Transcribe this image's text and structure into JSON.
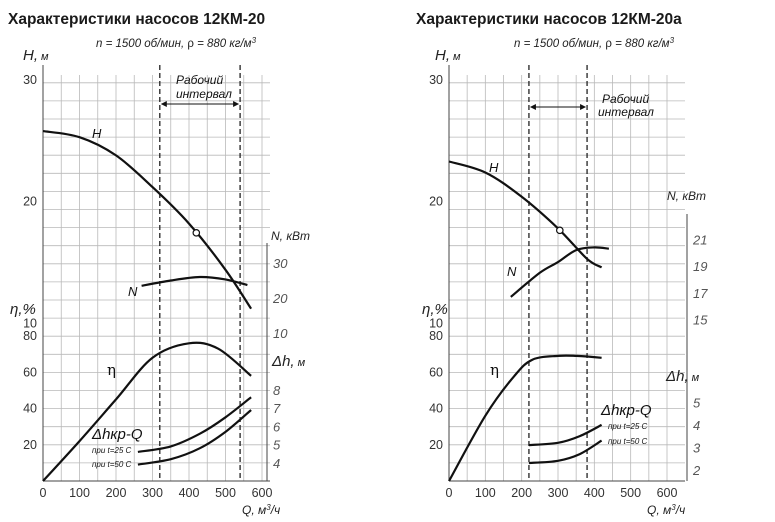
{
  "chart_data": [
    {
      "type": "line",
      "title": "Характеристики насосов 12КМ-20",
      "subtitle_rpm": "n = 1500 об/мин, ",
      "subtitle_rho_sym": "ρ",
      "subtitle_rho": " = 880 кг/м",
      "subtitle_sup": "3",
      "x_axis": {
        "label": "Q, м",
        "label_sup": "3",
        "label_tail": "/ч",
        "range": [
          0,
          600
        ],
        "ticks": [
          "0",
          "100",
          "200",
          "300",
          "400",
          "500",
          "600"
        ]
      },
      "y_axes": {
        "H": {
          "label": "H,",
          "unit": "м",
          "ticks": [
            "10",
            "20",
            "30"
          ],
          "range": [
            0,
            30
          ]
        },
        "eta": {
          "label": "η,%",
          "ticks": [
            "20",
            "40",
            "60",
            "80"
          ],
          "range": [
            0,
            80
          ]
        },
        "N": {
          "label": "N, кВт",
          "ticks": [
            "20",
            "30",
            "10"
          ],
          "range": [
            10,
            30
          ]
        },
        "dh": {
          "label": "Δh,",
          "unit": "м",
          "ticks": [
            "4",
            "5",
            "6",
            "7",
            "8"
          ],
          "range": [
            3,
            8
          ]
        }
      },
      "working_interval": {
        "label1": "Рабочий",
        "label2": "интервал",
        "q_range": [
          320,
          540
        ]
      },
      "series": [
        {
          "name": "H",
          "points": [
            [
              0,
              25.8
            ],
            [
              100,
              25.3
            ],
            [
              200,
              23.8
            ],
            [
              300,
              21.2
            ],
            [
              400,
              18.2
            ],
            [
              500,
              14.4
            ],
            [
              570,
              11.2
            ]
          ],
          "marker_q": 420
        },
        {
          "name": "N",
          "points": [
            [
              270,
              23.5
            ],
            [
              350,
              25
            ],
            [
              430,
              26
            ],
            [
              500,
              25.3
            ],
            [
              560,
              23.7
            ]
          ]
        },
        {
          "name": "η",
          "points": [
            [
              0,
              0
            ],
            [
              100,
              22
            ],
            [
              200,
              45
            ],
            [
              300,
              68
            ],
            [
              400,
              76
            ],
            [
              480,
              73
            ],
            [
              570,
              58
            ]
          ]
        },
        {
          "name": "Δhкр-Q",
          "label_main": "Δhкр-Q",
          "t25": "при t=25 C",
          "t50": "при t=50 C",
          "curves": [
            {
              "name": "при t=25 C",
              "points": [
                [
                  260,
                  4.6
                ],
                [
                  350,
                  4.9
                ],
                [
                  430,
                  5.6
                ],
                [
                  500,
                  6.5
                ],
                [
                  570,
                  7.6
                ]
              ]
            },
            {
              "name": "при t=50 C",
              "points": [
                [
                  260,
                  3.9
                ],
                [
                  350,
                  4.2
                ],
                [
                  430,
                  4.8
                ],
                [
                  500,
                  5.7
                ],
                [
                  570,
                  6.9
                ]
              ]
            }
          ]
        }
      ]
    },
    {
      "type": "line",
      "title": "Характеристики насосов 12КМ-20а",
      "subtitle_rpm": "n = 1500 об/мин, ",
      "subtitle_rho_sym": "ρ",
      "subtitle_rho": " = 880 кг/м",
      "subtitle_sup": "3",
      "x_axis": {
        "label": "Q, м",
        "label_sup": "3",
        "label_tail": "/ч",
        "range": [
          0,
          600
        ],
        "ticks": [
          "0",
          "100",
          "200",
          "300",
          "400",
          "500",
          "600"
        ]
      },
      "y_axes": {
        "H": {
          "label": "H,",
          "unit": "м",
          "ticks": [
            "10",
            "20",
            "30"
          ],
          "range": [
            0,
            30
          ]
        },
        "eta": {
          "label": "η,%",
          "ticks": [
            "20",
            "40",
            "60",
            "80"
          ],
          "range": [
            0,
            80
          ]
        },
        "N": {
          "label": "N, кВт",
          "ticks": [
            "15",
            "17",
            "19",
            "21"
          ],
          "range": [
            14,
            22
          ]
        },
        "dh": {
          "label": "Δh,",
          "unit": "м",
          "ticks": [
            "2",
            "3",
            "4",
            "5"
          ],
          "range": [
            1.5,
            6
          ]
        }
      },
      "working_interval": {
        "label1": "Рабочий",
        "label2": "интервал",
        "q_range": [
          220,
          380
        ]
      },
      "series": [
        {
          "name": "H",
          "points": [
            [
              0,
              23.3
            ],
            [
              100,
              22.4
            ],
            [
              200,
              20.4
            ],
            [
              300,
              17.8
            ],
            [
              380,
              15.3
            ],
            [
              420,
              14.6
            ]
          ],
          "marker_q": 305
        },
        {
          "name": "N",
          "points": [
            [
              170,
              16.7
            ],
            [
              250,
              18.5
            ],
            [
              300,
              19.3
            ],
            [
              350,
              20.2
            ],
            [
              400,
              20.4
            ],
            [
              440,
              20.3
            ]
          ]
        },
        {
          "name": "η",
          "points": [
            [
              0,
              0
            ],
            [
              100,
              36
            ],
            [
              180,
              58
            ],
            [
              230,
              67
            ],
            [
              300,
              69
            ],
            [
              350,
              69
            ],
            [
              420,
              68
            ]
          ]
        },
        {
          "name": "Δhкр-Q",
          "label_main": "Δhкр-Q",
          "t25": "при t=25 C",
          "t50": "при t=50 C",
          "curves": [
            {
              "name": "при t=25 C",
              "points": [
                [
                  220,
                  3.1
                ],
                [
                  300,
                  3.2
                ],
                [
                  360,
                  3.5
                ],
                [
                  420,
                  4.0
                ]
              ]
            },
            {
              "name": "при t=50 C",
              "points": [
                [
                  220,
                  2.3
                ],
                [
                  300,
                  2.4
                ],
                [
                  360,
                  2.7
                ],
                [
                  420,
                  3.3
                ]
              ]
            }
          ]
        }
      ]
    }
  ]
}
